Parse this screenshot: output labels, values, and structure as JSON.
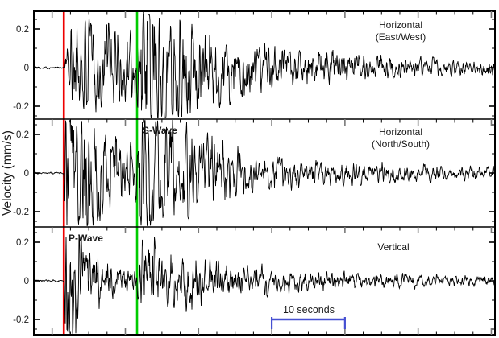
{
  "figure": {
    "ylabel": "Velocity (mm/s)",
    "annotations": {
      "p_label": "P-Wave",
      "s_label": "S-Wave",
      "scalebar_label": "10 seconds"
    },
    "colors": {
      "background": "#ffffff",
      "trace": "#000000",
      "axis": "#000000",
      "major_tick": "#787878",
      "p_marker": "#ee0000",
      "s_marker": "#00cc00",
      "scalebar": "#4650d2",
      "text": "#1a1a1a"
    }
  },
  "panels": [
    {
      "name": "horizontal-east-west",
      "label_lines": [
        "Horizontal",
        "(East/West)"
      ],
      "ytick_labels": [
        "0.2",
        "0",
        "-0.2"
      ]
    },
    {
      "name": "horizontal-north-south",
      "label_lines": [
        "Horizontal",
        "(North/South)"
      ],
      "ytick_labels": [
        "0.2",
        "0",
        "-0.2"
      ]
    },
    {
      "name": "vertical",
      "label_lines": [
        "Vertical"
      ],
      "ytick_labels": [
        "0.2",
        "0",
        "-0.2"
      ]
    }
  ],
  "chart_data": {
    "type": "line",
    "subtype": "seismogram",
    "title": "",
    "xlabel": "",
    "ylabel": "Velocity (mm/s)",
    "yticks": [
      0.2,
      0,
      -0.2
    ],
    "y_minor_ticks": [
      0.25,
      0.1,
      -0.1,
      -0.25
    ],
    "ylim": [
      -0.28,
      0.3
    ],
    "grid": false,
    "time_window_seconds": 63,
    "x_minor_tick_seconds": 2.5,
    "x_major_tick_seconds": 10,
    "p_arrival_seconds": 4.1,
    "s_arrival_seconds": 14.1,
    "s_minus_p_seconds": 10,
    "scalebar_seconds": 10,
    "scalebar_start_seconds": 32.5,
    "series": [
      {
        "name": "Horizontal (East/West)",
        "component": "east-west",
        "envelope_mm_s": {
          "background": 0.004,
          "p_peak": 0.2,
          "p_rise_s": 1.2,
          "p_decay_s": 22,
          "s_peak": 0.27,
          "s_rise_s": 0.7,
          "s_decay_s": 5.5,
          "coda_level": 0.055,
          "coda_decay_s": 30
        }
      },
      {
        "name": "Horizontal (North/South)",
        "component": "north-south",
        "envelope_mm_s": {
          "background": 0.004,
          "p_peak": 0.46,
          "p_rise_s": 0.35,
          "p_decay_s": 4.5,
          "s_peak": 0.27,
          "s_rise_s": 0.7,
          "s_decay_s": 7,
          "coda_level": 0.08,
          "coda_decay_s": 45
        }
      },
      {
        "name": "Vertical",
        "component": "vertical",
        "envelope_mm_s": {
          "background": 0.004,
          "p_peak": 0.48,
          "p_rise_s": 0.3,
          "p_decay_s": 2.2,
          "s_peak": 0.12,
          "s_rise_s": 1.0,
          "s_decay_s": 9,
          "coda_level": 0.06,
          "coda_decay_s": 40
        }
      }
    ]
  }
}
